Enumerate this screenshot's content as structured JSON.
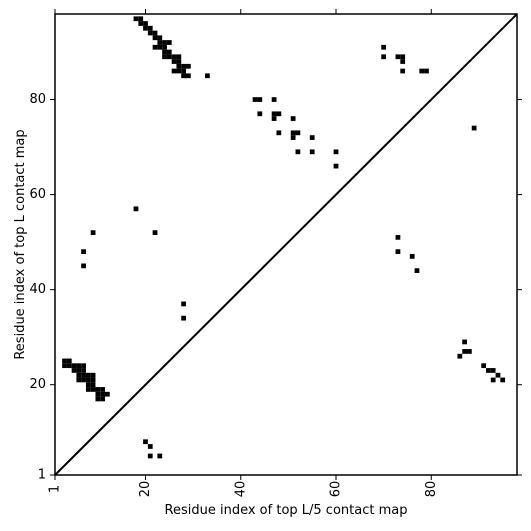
{
  "chart_data": {
    "type": "heatmap",
    "title": "",
    "xlabel": "Residue index of top L/5 contact map",
    "ylabel": "Residue index of top L contact map",
    "xlim": [
      1,
      98
    ],
    "ylim": [
      1,
      98
    ],
    "x_ticks": [
      1,
      20,
      40,
      60,
      80
    ],
    "y_ticks": [
      1,
      20,
      40,
      60,
      80
    ],
    "x_tick_labels": [
      "1",
      "20",
      "40",
      "60",
      "80"
    ],
    "y_tick_labels": [
      "1",
      "20",
      "40",
      "60",
      "80"
    ],
    "x_tick_rotation_deg": -90,
    "diagonal_line": true,
    "grid": false,
    "cell_color": "#000000",
    "background_color": "#ffffff",
    "lower_triangle_contacts": [
      [
        3,
        25
      ],
      [
        3,
        24
      ],
      [
        4,
        25
      ],
      [
        4,
        24
      ],
      [
        5,
        24
      ],
      [
        5,
        23
      ],
      [
        6,
        24
      ],
      [
        6,
        23
      ],
      [
        7,
        24
      ],
      [
        7,
        23
      ],
      [
        7,
        22
      ],
      [
        6,
        22
      ],
      [
        6,
        21
      ],
      [
        7,
        21
      ],
      [
        8,
        22
      ],
      [
        8,
        21
      ],
      [
        8,
        20
      ],
      [
        8,
        19
      ],
      [
        9,
        22
      ],
      [
        9,
        21
      ],
      [
        9,
        20
      ],
      [
        9,
        19
      ],
      [
        10,
        19
      ],
      [
        10,
        18
      ],
      [
        10,
        17
      ],
      [
        11,
        19
      ],
      [
        11,
        18
      ],
      [
        11,
        17
      ],
      [
        12,
        18
      ],
      [
        20,
        8
      ],
      [
        21,
        7
      ],
      [
        21,
        5
      ],
      [
        23,
        5
      ],
      [
        86,
        26
      ],
      [
        87,
        29
      ],
      [
        87,
        27
      ],
      [
        88,
        27
      ],
      [
        91,
        24
      ],
      [
        92,
        23
      ],
      [
        93,
        23
      ],
      [
        93,
        21
      ],
      [
        94,
        22
      ],
      [
        95,
        21
      ]
    ],
    "upper_triangle_contacts": [
      [
        18,
        97
      ],
      [
        19,
        97
      ],
      [
        19,
        96
      ],
      [
        20,
        96
      ],
      [
        20,
        95
      ],
      [
        21,
        95
      ],
      [
        21,
        94
      ],
      [
        22,
        94
      ],
      [
        22,
        93
      ],
      [
        23,
        93
      ],
      [
        22,
        91
      ],
      [
        23,
        91
      ],
      [
        23,
        92
      ],
      [
        24,
        92
      ],
      [
        25,
        92
      ],
      [
        24,
        91
      ],
      [
        24,
        90
      ],
      [
        25,
        90
      ],
      [
        24,
        89
      ],
      [
        25,
        89
      ],
      [
        26,
        89
      ],
      [
        27,
        89
      ],
      [
        26,
        88
      ],
      [
        27,
        88
      ],
      [
        26,
        86
      ],
      [
        27,
        86
      ],
      [
        27,
        87
      ],
      [
        28,
        87
      ],
      [
        29,
        87
      ],
      [
        28,
        86
      ],
      [
        28,
        85
      ],
      [
        29,
        85
      ],
      [
        33,
        85
      ],
      [
        43,
        80
      ],
      [
        44,
        80
      ],
      [
        47,
        80
      ],
      [
        44,
        77
      ],
      [
        47,
        77
      ],
      [
        48,
        77
      ],
      [
        47,
        76
      ],
      [
        51,
        76
      ],
      [
        48,
        73
      ],
      [
        51,
        73
      ],
      [
        52,
        73
      ],
      [
        51,
        72
      ],
      [
        55,
        72
      ],
      [
        52,
        69
      ],
      [
        55,
        69
      ],
      [
        60,
        69
      ],
      [
        60,
        66
      ],
      [
        70,
        91
      ],
      [
        70,
        89
      ],
      [
        73,
        89
      ],
      [
        74,
        89
      ],
      [
        74,
        88
      ],
      [
        74,
        86
      ],
      [
        78,
        86
      ],
      [
        79,
        86
      ],
      [
        89,
        74
      ],
      [
        18,
        57
      ],
      [
        22,
        52
      ],
      [
        9,
        52
      ],
      [
        7,
        48
      ],
      [
        7,
        45
      ],
      [
        28,
        37
      ],
      [
        28,
        34
      ],
      [
        73,
        51
      ],
      [
        73,
        48
      ],
      [
        76,
        47
      ],
      [
        77,
        44
      ]
    ]
  }
}
